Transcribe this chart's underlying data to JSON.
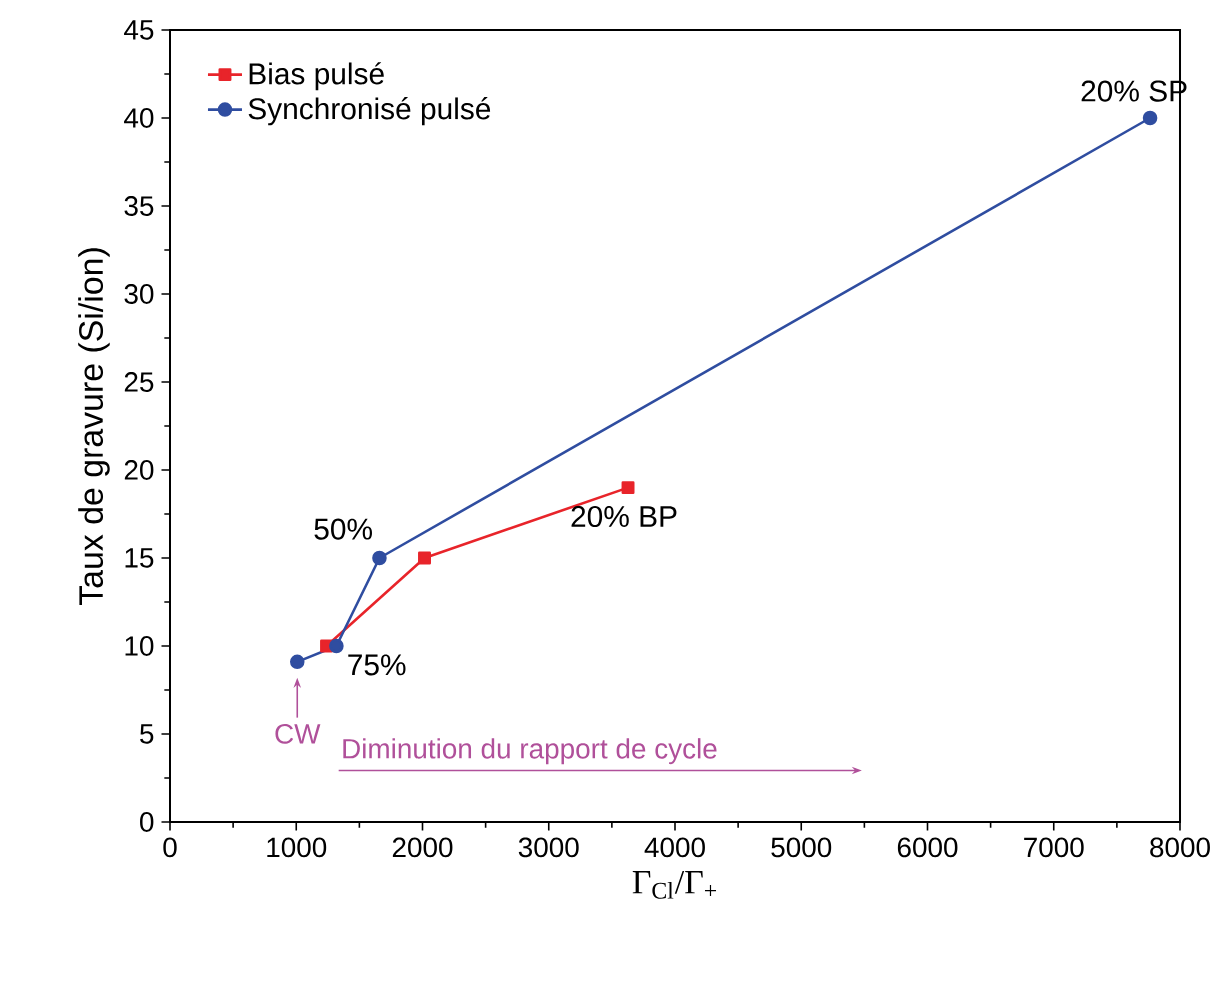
{
  "chart_data": {
    "type": "line",
    "xlabel": "Γ$_{Cl}$/Γ$_{+}$",
    "ylabel": "Taux de gravure (Si/ion)",
    "xlim": [
      0,
      8000
    ],
    "ylim": [
      0,
      45
    ],
    "xticks": [
      0,
      1000,
      2000,
      3000,
      4000,
      5000,
      6000,
      7000,
      8000
    ],
    "yticks": [
      0,
      5,
      10,
      15,
      20,
      25,
      30,
      35,
      40,
      45
    ],
    "legend": "top left",
    "grid": false,
    "series": [
      {
        "name": "Bias pulsé",
        "color": "#e8242a",
        "marker": "square",
        "x": [
          1240,
          2016,
          3628
        ],
        "values": [
          10.0,
          15.0,
          19.0
        ]
      },
      {
        "name": "Synchronisé pulsé",
        "color": "#2f4da0",
        "marker": "circle",
        "x": [
          1008,
          1318,
          1659,
          7763
        ],
        "values": [
          9.1,
          10.0,
          15.0,
          40.0
        ]
      }
    ],
    "annotations": [
      {
        "text": "20% SP",
        "x": 7763,
        "y": 40.0
      },
      {
        "text": "50%",
        "x": 1659,
        "y": 15.0
      },
      {
        "text": "75%",
        "x": 1318,
        "y": 10.0
      },
      {
        "text": "20% BP",
        "x": 3628,
        "y": 19.0
      },
      {
        "text": "CW",
        "x": 1008,
        "y": 9.1
      },
      "Diminution du rapport de cycle"
    ]
  }
}
